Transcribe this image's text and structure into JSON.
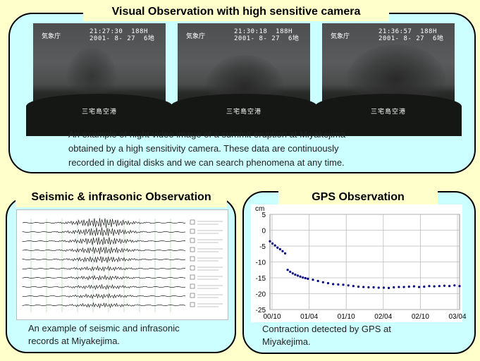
{
  "sections": {
    "visual": {
      "title": "Visual Observation with high sensitive camera",
      "caption_lines": [
        "An example of night video image of a summit eruption at Miyakejima",
        "obtained by a high sensitivity camera.  These data are continuously",
        "recorded in digital disks and we can search phenomena at any time."
      ],
      "frames": [
        {
          "agency": "気象庁",
          "time": "21:27:30  188H",
          "date": "2001- 8- 27  6地",
          "location": "三宅島空港"
        },
        {
          "agency": "気象庁",
          "time": "21:30:18  188H",
          "date": "2001- 8- 27  6地",
          "location": "三宅島空港"
        },
        {
          "agency": "気象庁",
          "time": "21:36:57  188H",
          "date": "2001- 8- 27  6地",
          "location": "三宅島空港"
        }
      ]
    },
    "seismic": {
      "title": "Seismic & infrasonic Observation",
      "caption_lines": [
        "An example of seismic and infrasonic",
        "records at Miyakejima."
      ]
    },
    "gps": {
      "title": "GPS Observation",
      "caption_lines": [
        "Contraction detected by GPS at",
        "Miyakejima."
      ]
    }
  },
  "colors": {
    "background": "#ffffcc",
    "panel": "#ccffff",
    "gps_points": "#000080"
  },
  "chart_data": {
    "type": "scatter",
    "unit_label": "cm",
    "x_ticks": [
      "00/10",
      "01/04",
      "01/10",
      "02/04",
      "02/10",
      "03/04"
    ],
    "y_ticks": [
      5,
      0,
      -5,
      -10,
      -15,
      -20,
      -25
    ],
    "ylim": [
      -25,
      5
    ],
    "xlim": [
      0,
      30
    ],
    "grid": true,
    "series": [
      {
        "x": [
          0.0,
          0.4,
          0.8,
          1.2,
          1.6,
          2.0,
          2.4,
          2.8,
          3.2,
          3.6,
          4.0,
          4.4,
          4.8,
          5.2,
          5.6,
          6.0,
          6.8,
          7.6,
          8.4,
          9.2,
          10.0,
          10.8,
          11.6,
          12.4,
          13.2,
          14.0,
          14.8,
          15.6,
          16.4,
          17.2,
          18.0,
          18.8,
          19.6,
          20.4,
          21.2,
          22.0,
          22.8,
          23.6,
          24.4,
          25.2,
          26.0,
          26.8,
          27.6,
          28.4,
          29.2,
          30.0
        ],
        "y": [
          -3.5,
          -4.2,
          -4.8,
          -5.5,
          -6.0,
          -6.6,
          -7.3,
          -12.5,
          -13.1,
          -13.6,
          -14.0,
          -14.3,
          -14.6,
          -14.9,
          -15.1,
          -15.3,
          -15.6,
          -16.0,
          -16.4,
          -16.7,
          -17.0,
          -17.1,
          -17.2,
          -17.4,
          -17.6,
          -17.8,
          -17.9,
          -18.0,
          -18.0,
          -18.1,
          -18.1,
          -18.2,
          -18.0,
          -17.9,
          -17.9,
          -17.8,
          -17.7,
          -17.9,
          -17.8,
          -17.6,
          -17.7,
          -17.6,
          -17.5,
          -17.6,
          -17.4,
          -17.6
        ]
      }
    ]
  }
}
